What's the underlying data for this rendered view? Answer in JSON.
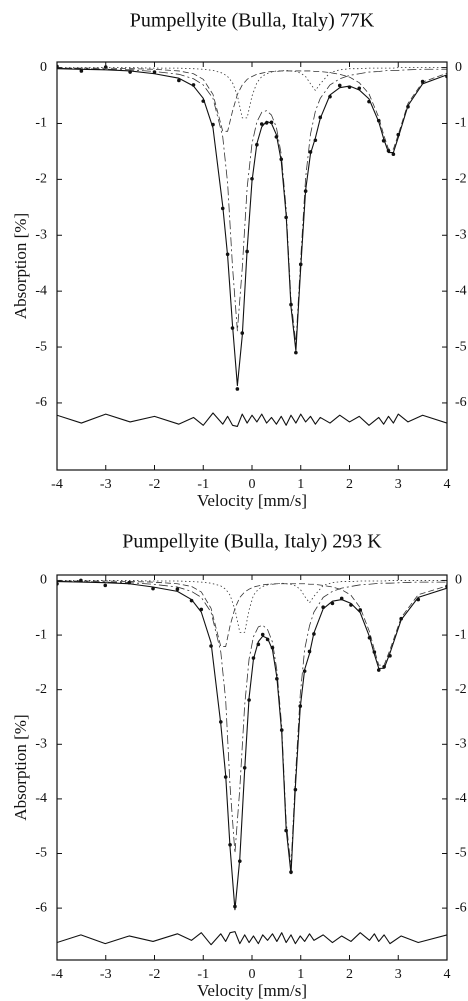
{
  "chart_data": [
    {
      "type": "line",
      "title": "Pumpellyite (Bulla, Italy) 77K",
      "xlabel": "Velocity [mm/s]",
      "ylabel": "Absorption [%]",
      "xlim": [
        -4,
        4
      ],
      "xticks": [
        -4,
        -3,
        -2,
        -1,
        0,
        1,
        2,
        3,
        4
      ],
      "ylim": [
        -7.2,
        0.1
      ],
      "yticks": [
        0,
        -1,
        -2,
        -3,
        -4,
        -5,
        -6
      ],
      "y2lim": [
        -7.2,
        0.1
      ],
      "y2ticks": [
        0,
        -1,
        -2,
        -3,
        -4,
        -5,
        -6
      ],
      "x": [
        -4,
        -3.5,
        -3,
        -2.5,
        -2,
        -1.5,
        -1.2,
        -1,
        -0.8,
        -0.6,
        -0.5,
        -0.4,
        -0.3,
        -0.2,
        -0.1,
        0,
        0.1,
        0.2,
        0.3,
        0.4,
        0.5,
        0.6,
        0.7,
        0.8,
        0.9,
        1,
        1.1,
        1.2,
        1.3,
        1.4,
        1.6,
        1.8,
        2,
        2.2,
        2.4,
        2.6,
        2.7,
        2.8,
        2.9,
        3,
        3.2,
        3.5,
        4
      ],
      "series": [
        {
          "color": "#333333",
          "style": "dashdot",
          "values": [
            -0.01,
            -0.02,
            -0.03,
            -0.04,
            -0.07,
            -0.12,
            -0.2,
            -0.31,
            -0.55,
            -1.24,
            -2.07,
            -3.56,
            -4.71,
            -3.59,
            -2.15,
            -1.36,
            -0.97,
            -0.8,
            -0.77,
            -0.85,
            -1.07,
            -1.55,
            -2.52,
            -4.16,
            -4.94,
            -3.41,
            -1.97,
            -1.19,
            -0.78,
            -0.55,
            -0.31,
            -0.2,
            -0.14,
            -0.11,
            -0.08,
            -0.07,
            -0.06,
            -0.05,
            -0.05,
            -0.05,
            -0.04,
            -0.03,
            -0.03
          ]
        },
        {
          "color": "#333333",
          "style": "dashed",
          "values": [
            -0.01,
            -0.01,
            -0.01,
            -0.02,
            -0.03,
            -0.06,
            -0.11,
            -0.21,
            -0.48,
            -1.14,
            -1.14,
            -0.78,
            -0.48,
            -0.31,
            -0.21,
            -0.16,
            -0.12,
            -0.1,
            -0.08,
            -0.07,
            -0.07,
            -0.06,
            -0.06,
            -0.06,
            -0.06,
            -0.06,
            -0.06,
            -0.06,
            -0.07,
            -0.07,
            -0.09,
            -0.12,
            -0.17,
            -0.27,
            -0.47,
            -0.89,
            -1.2,
            -1.46,
            -1.46,
            -1.2,
            -0.64,
            -0.26,
            -0.1
          ]
        },
        {
          "color": "#333333",
          "style": "dotted",
          "values": [
            0,
            0,
            0,
            0,
            -0.01,
            -0.01,
            -0.02,
            -0.03,
            -0.05,
            -0.1,
            -0.16,
            -0.27,
            -0.5,
            -0.9,
            -0.9,
            -0.51,
            -0.27,
            -0.16,
            -0.11,
            -0.08,
            -0.06,
            -0.06,
            -0.05,
            -0.06,
            -0.07,
            -0.1,
            -0.16,
            -0.29,
            -0.41,
            -0.29,
            -0.09,
            -0.04,
            -0.02,
            -0.02,
            -0.01,
            -0.01,
            -0.01,
            -0.01,
            -0.01,
            0,
            0,
            0,
            0
          ]
        },
        {
          "color": "#111111",
          "style": "solid",
          "values": [
            -0.02,
            -0.03,
            -0.04,
            -0.06,
            -0.11,
            -0.19,
            -0.33,
            -0.55,
            -1.08,
            -2.48,
            -3.37,
            -4.61,
            -5.69,
            -4.8,
            -3.26,
            -2.03,
            -1.36,
            -1.06,
            -0.96,
            -1.0,
            -1.2,
            -1.67,
            -2.63,
            -4.28,
            -5.07,
            -3.57,
            -2.19,
            -1.54,
            -1.26,
            -0.91,
            -0.49,
            -0.36,
            -0.33,
            -0.4,
            -0.56,
            -0.97,
            -1.27,
            -1.52,
            -1.52,
            -1.25,
            -0.68,
            -0.29,
            -0.13
          ]
        },
        {
          "color": "#111111",
          "style": "solid",
          "values": [
            -6.22,
            -6.36,
            -6.2,
            -6.34,
            -6.24,
            -6.38,
            -6.26,
            -6.4,
            -6.18,
            -6.38,
            -6.24,
            -6.4,
            -6.42,
            -6.2,
            -6.36,
            -6.22,
            -6.34,
            -6.2,
            -6.36,
            -6.26,
            -6.38,
            -6.24,
            -6.4,
            -6.22,
            -6.36,
            -6.2,
            -6.34,
            -6.24,
            -6.38,
            -6.26,
            -6.36,
            -6.22,
            -6.34,
            -6.24,
            -6.4,
            -6.26,
            -6.38,
            -6.24,
            -6.36,
            -6.2,
            -6.34,
            -6.22,
            -6.36
          ]
        },
        {
          "color": "#111111",
          "style": "points",
          "values": [
            0.02,
            -0.06,
            0.01,
            -0.08,
            -0.08,
            -0.23,
            -0.31,
            -0.6,
            -1.02,
            -2.52,
            -3.34,
            -4.66,
            -5.75,
            -4.75,
            -3.29,
            -1.99,
            -1.38,
            -1.01,
            -0.99,
            -0.98,
            -1.24,
            -1.64,
            -2.68,
            -4.24,
            -5.1,
            -3.52,
            -2.21,
            -1.51,
            -1.3,
            -0.89,
            -0.52,
            -0.32,
            -0.35,
            -0.37,
            -0.61,
            -0.95,
            -1.31,
            -1.49,
            -1.55,
            -1.2,
            -0.7,
            -0.25,
            -0.16
          ]
        }
      ]
    },
    {
      "type": "line",
      "title": "Pumpellyite (Bulla, Italy) 293 K",
      "xlabel": "Velocity [mm/s]",
      "ylabel": "Absorption [%]",
      "xlim": [
        -4,
        4
      ],
      "xticks": [
        -4,
        -3,
        -2,
        -1,
        0,
        1,
        2,
        3,
        4
      ],
      "ylim": [
        -6.95,
        0.1
      ],
      "yticks": [
        0,
        -1,
        -2,
        -3,
        -4,
        -5,
        -6
      ],
      "y2lim": [
        -6.95,
        0.1
      ],
      "y2ticks": [
        0,
        -1,
        -2,
        -3,
        -4,
        -5,
        -6
      ],
      "x": [
        -4,
        -3.51,
        -3.01,
        -2.52,
        -2.03,
        -1.53,
        -1.24,
        -1.04,
        -0.84,
        -0.64,
        -0.54,
        -0.45,
        -0.35,
        -0.25,
        -0.15,
        -0.06,
        0.03,
        0.13,
        0.22,
        0.32,
        0.42,
        0.51,
        0.61,
        0.7,
        0.8,
        0.89,
        0.99,
        1.08,
        1.18,
        1.27,
        1.46,
        1.65,
        1.84,
        2.03,
        2.22,
        2.41,
        2.51,
        2.6,
        2.71,
        2.83,
        3.06,
        3.41,
        4
      ],
      "series": [
        {
          "color": "#333333",
          "style": "dashdot",
          "values": [
            -0.01,
            -0.02,
            -0.03,
            -0.04,
            -0.07,
            -0.12,
            -0.2,
            -0.31,
            -0.58,
            -1.31,
            -2.19,
            -3.77,
            -4.99,
            -3.81,
            -2.28,
            -1.44,
            -1.03,
            -0.85,
            -0.82,
            -0.9,
            -1.13,
            -1.64,
            -2.67,
            -4.41,
            -5.24,
            -3.61,
            -2.09,
            -1.26,
            -0.83,
            -0.58,
            -0.31,
            -0.2,
            -0.14,
            -0.11,
            -0.08,
            -0.07,
            -0.06,
            -0.05,
            -0.05,
            -0.05,
            -0.04,
            -0.03,
            -0.03
          ]
        },
        {
          "color": "#333333",
          "style": "dashed",
          "values": [
            -0.01,
            -0.01,
            -0.01,
            -0.02,
            -0.03,
            -0.06,
            -0.11,
            -0.21,
            -0.51,
            -1.21,
            -1.21,
            -0.83,
            -0.51,
            -0.31,
            -0.21,
            -0.16,
            -0.12,
            -0.1,
            -0.08,
            -0.07,
            -0.07,
            -0.06,
            -0.06,
            -0.06,
            -0.06,
            -0.06,
            -0.06,
            -0.06,
            -0.07,
            -0.07,
            -0.09,
            -0.12,
            -0.17,
            -0.27,
            -0.5,
            -0.94,
            -1.27,
            -1.55,
            -1.55,
            -1.27,
            -0.68,
            -0.26,
            -0.1
          ]
        },
        {
          "color": "#333333",
          "style": "dotted",
          "values": [
            0,
            0,
            0,
            0,
            -0.01,
            -0.01,
            -0.02,
            -0.03,
            -0.05,
            -0.1,
            -0.16,
            -0.27,
            -0.53,
            -0.95,
            -0.95,
            -0.54,
            -0.27,
            -0.16,
            -0.11,
            -0.08,
            -0.06,
            -0.06,
            -0.05,
            -0.06,
            -0.07,
            -0.1,
            -0.16,
            -0.29,
            -0.41,
            -0.29,
            -0.09,
            -0.04,
            -0.02,
            -0.02,
            -0.01,
            -0.01,
            -0.01,
            -0.01,
            -0.01,
            0,
            0,
            0,
            0
          ]
        },
        {
          "color": "#111111",
          "style": "solid",
          "values": [
            -0.02,
            -0.03,
            -0.04,
            -0.06,
            -0.12,
            -0.2,
            -0.35,
            -0.58,
            -1.14,
            -2.63,
            -3.57,
            -4.89,
            -6.03,
            -5.09,
            -3.46,
            -2.15,
            -1.44,
            -1.12,
            -1.02,
            -1.06,
            -1.27,
            -1.77,
            -2.79,
            -4.54,
            -5.37,
            -3.78,
            -2.32,
            -1.63,
            -1.34,
            -0.96,
            -0.52,
            -0.38,
            -0.35,
            -0.42,
            -0.59,
            -1.03,
            -1.35,
            -1.61,
            -1.61,
            -1.33,
            -0.72,
            -0.31,
            -0.14
          ]
        },
        {
          "color": "#111111",
          "style": "solid",
          "values": [
            -6.63,
            -6.49,
            -6.65,
            -6.51,
            -6.61,
            -6.47,
            -6.59,
            -6.45,
            -6.67,
            -6.47,
            -6.61,
            -6.45,
            -6.43,
            -6.65,
            -6.49,
            -6.63,
            -6.51,
            -6.65,
            -6.49,
            -6.59,
            -6.47,
            -6.61,
            -6.45,
            -6.63,
            -6.49,
            -6.65,
            -6.51,
            -6.61,
            -6.47,
            -6.59,
            -6.49,
            -6.63,
            -6.51,
            -6.61,
            -6.45,
            -6.59,
            -6.47,
            -6.61,
            -6.49,
            -6.65,
            -6.51,
            -6.63,
            -6.49
          ]
        },
        {
          "color": "#111111",
          "style": "points",
          "values": [
            -0.06,
            0,
            -0.09,
            -0.04,
            -0.15,
            -0.16,
            -0.37,
            -0.53,
            -1.2,
            -2.59,
            -3.6,
            -4.84,
            -5.97,
            -5.14,
            -3.43,
            -2.19,
            -1.42,
            -1.17,
            -0.99,
            -1.08,
            -1.23,
            -1.8,
            -2.74,
            -4.58,
            -5.34,
            -3.83,
            -2.3,
            -1.66,
            -1.3,
            -0.98,
            -0.49,
            -0.42,
            -0.33,
            -0.45,
            -0.54,
            -1.05,
            -1.31,
            -1.64,
            -1.58,
            -1.38,
            -0.7,
            -0.35,
            -0.11
          ]
        }
      ]
    }
  ]
}
